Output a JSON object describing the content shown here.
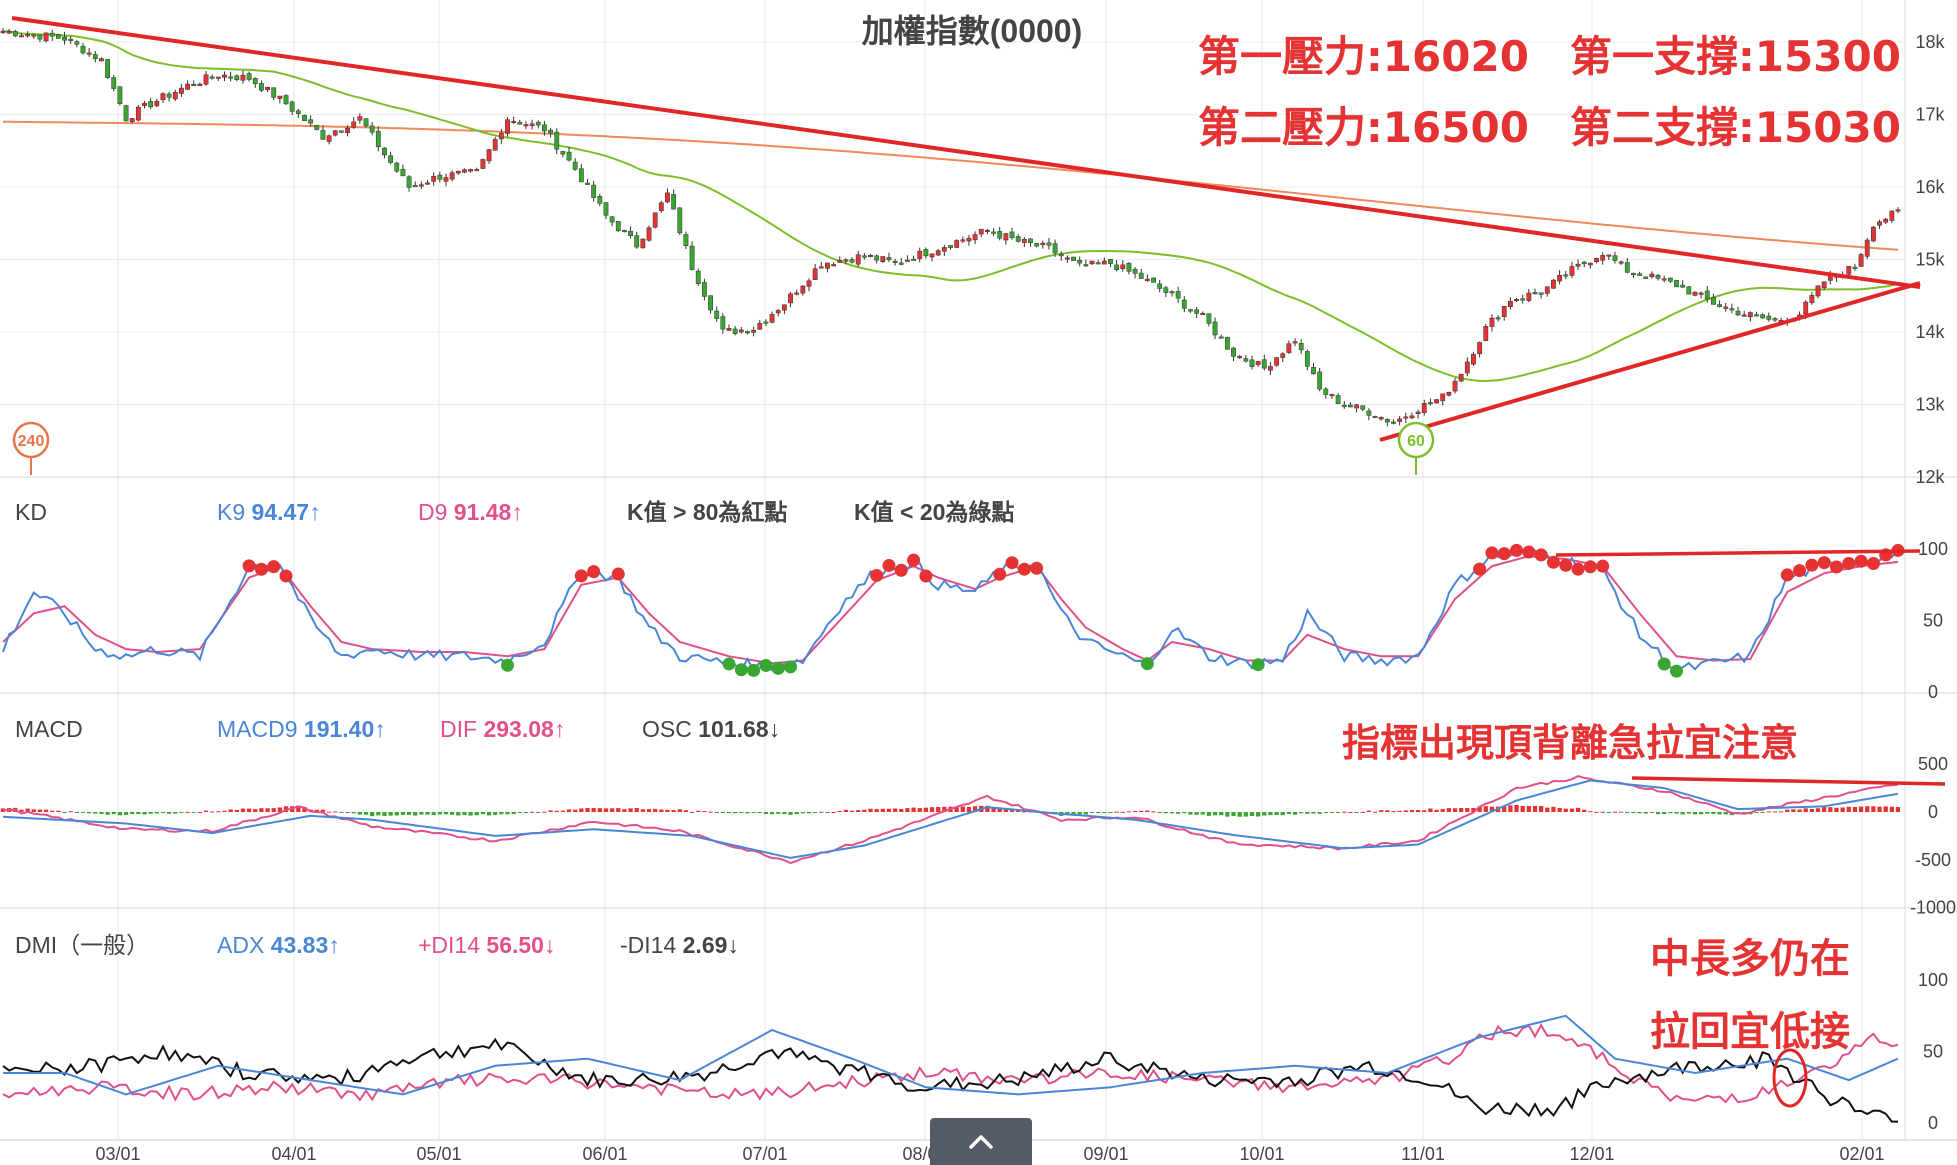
{
  "chart_data": {
    "type": "candlestick",
    "title": "加權指數(0000)",
    "annotations": {
      "resist1": "第一壓力:16020",
      "support1": "第一支撐:15300",
      "resist2": "第二壓力:16500",
      "support2": "第二支撐:15030",
      "macd_note": "指標出現頂背離急拉宜注意",
      "dmi_note1": "中長多仍在",
      "dmi_note2": "拉回宜低接"
    },
    "ma_badges": [
      "240",
      "60"
    ],
    "price_axis": {
      "ticks": [
        "18k",
        "17k",
        "16k",
        "15k",
        "14k",
        "13k",
        "12k"
      ],
      "range": [
        12000,
        18400
      ]
    },
    "x_axis_labels": [
      "03/01",
      "04/01",
      "05/01",
      "06/01",
      "07/01",
      "08/01",
      "09/01",
      "10/01",
      "11/01",
      "12/01",
      "02/01"
    ],
    "candle_keypoints": [
      [
        0,
        18150
      ],
      [
        10,
        18050
      ],
      [
        16,
        17750
      ],
      [
        20,
        16950
      ],
      [
        24,
        17150
      ],
      [
        30,
        17400
      ],
      [
        35,
        17550
      ],
      [
        40,
        17500
      ],
      [
        46,
        17150
      ],
      [
        52,
        16700
      ],
      [
        58,
        16950
      ],
      [
        62,
        16450
      ],
      [
        66,
        16000
      ],
      [
        71,
        16150
      ],
      [
        77,
        16200
      ],
      [
        82,
        16950
      ],
      [
        88,
        16800
      ],
      [
        93,
        16250
      ],
      [
        98,
        15600
      ],
      [
        103,
        15200
      ],
      [
        108,
        15900
      ],
      [
        112,
        14900
      ],
      [
        117,
        14000
      ],
      [
        122,
        14050
      ],
      [
        127,
        14400
      ],
      [
        133,
        14950
      ],
      [
        140,
        15050
      ],
      [
        145,
        14950
      ],
      [
        150,
        15100
      ],
      [
        155,
        15250
      ],
      [
        160,
        15400
      ],
      [
        165,
        15250
      ],
      [
        170,
        15150
      ],
      [
        175,
        14900
      ],
      [
        180,
        14950
      ],
      [
        185,
        14750
      ],
      [
        190,
        14500
      ],
      [
        195,
        14200
      ],
      [
        200,
        13700
      ],
      [
        205,
        13500
      ],
      [
        210,
        13900
      ],
      [
        214,
        13200
      ],
      [
        218,
        13000
      ],
      [
        222,
        12900
      ],
      [
        226,
        12750
      ],
      [
        230,
        12950
      ],
      [
        234,
        13100
      ],
      [
        237,
        13450
      ],
      [
        241,
        14050
      ],
      [
        245,
        14450
      ],
      [
        250,
        14550
      ],
      [
        255,
        14850
      ],
      [
        260,
        15100
      ],
      [
        264,
        14850
      ],
      [
        268,
        14750
      ],
      [
        272,
        14650
      ],
      [
        278,
        14400
      ],
      [
        283,
        14250
      ],
      [
        288,
        14150
      ],
      [
        292,
        14250
      ],
      [
        296,
        14700
      ],
      [
        301,
        14900
      ],
      [
        304,
        15500
      ],
      [
        308,
        15650
      ]
    ],
    "kd": {
      "k9_label": "K9",
      "k9": "94.47",
      "k9_arrow": "↑",
      "d9_label": "D9",
      "d9": "91.48",
      "d9_arrow": "↑",
      "rule1": "K值 > 80為紅點",
      "rule2": "K值 < 20為綠點",
      "axis": [
        "100",
        "50",
        "0"
      ],
      "k_keypoints": [
        [
          0,
          30
        ],
        [
          5,
          70
        ],
        [
          10,
          55
        ],
        [
          15,
          30
        ],
        [
          20,
          25
        ],
        [
          25,
          30
        ],
        [
          32,
          25
        ],
        [
          40,
          88
        ],
        [
          45,
          90
        ],
        [
          50,
          50
        ],
        [
          55,
          25
        ],
        [
          60,
          30
        ],
        [
          68,
          25
        ],
        [
          75,
          25
        ],
        [
          82,
          22
        ],
        [
          88,
          35
        ],
        [
          94,
          85
        ],
        [
          100,
          80
        ],
        [
          105,
          45
        ],
        [
          110,
          25
        ],
        [
          118,
          20
        ],
        [
          125,
          18
        ],
        [
          130,
          22
        ],
        [
          136,
          60
        ],
        [
          142,
          85
        ],
        [
          148,
          90
        ],
        [
          152,
          75
        ],
        [
          158,
          70
        ],
        [
          162,
          85
        ],
        [
          168,
          90
        ],
        [
          172,
          55
        ],
        [
          176,
          35
        ],
        [
          182,
          25
        ],
        [
          186,
          18
        ],
        [
          190,
          45
        ],
        [
          196,
          25
        ],
        [
          202,
          20
        ],
        [
          208,
          22
        ],
        [
          212,
          55
        ],
        [
          218,
          25
        ],
        [
          224,
          22
        ],
        [
          230,
          25
        ],
        [
          236,
          75
        ],
        [
          242,
          95
        ],
        [
          248,
          98
        ],
        [
          254,
          92
        ],
        [
          260,
          85
        ],
        [
          266,
          40
        ],
        [
          272,
          15
        ],
        [
          278,
          20
        ],
        [
          284,
          25
        ],
        [
          290,
          80
        ],
        [
          296,
          88
        ],
        [
          302,
          92
        ],
        [
          308,
          96
        ]
      ],
      "d_keypoints": [
        [
          0,
          35
        ],
        [
          5,
          55
        ],
        [
          10,
          60
        ],
        [
          15,
          40
        ],
        [
          20,
          30
        ],
        [
          25,
          28
        ],
        [
          32,
          30
        ],
        [
          40,
          80
        ],
        [
          45,
          88
        ],
        [
          50,
          60
        ],
        [
          55,
          35
        ],
        [
          60,
          30
        ],
        [
          68,
          28
        ],
        [
          75,
          28
        ],
        [
          82,
          25
        ],
        [
          88,
          30
        ],
        [
          94,
          75
        ],
        [
          100,
          80
        ],
        [
          105,
          55
        ],
        [
          110,
          35
        ],
        [
          118,
          25
        ],
        [
          125,
          20
        ],
        [
          130,
          22
        ],
        [
          136,
          50
        ],
        [
          142,
          78
        ],
        [
          148,
          88
        ],
        [
          152,
          80
        ],
        [
          158,
          72
        ],
        [
          162,
          80
        ],
        [
          168,
          88
        ],
        [
          172,
          65
        ],
        [
          176,
          45
        ],
        [
          182,
          30
        ],
        [
          186,
          22
        ],
        [
          190,
          35
        ],
        [
          196,
          30
        ],
        [
          202,
          22
        ],
        [
          208,
          22
        ],
        [
          212,
          40
        ],
        [
          218,
          30
        ],
        [
          224,
          25
        ],
        [
          230,
          25
        ],
        [
          236,
          65
        ],
        [
          242,
          88
        ],
        [
          248,
          95
        ],
        [
          254,
          93
        ],
        [
          260,
          88
        ],
        [
          266,
          55
        ],
        [
          272,
          25
        ],
        [
          278,
          22
        ],
        [
          284,
          23
        ],
        [
          290,
          70
        ],
        [
          296,
          83
        ],
        [
          302,
          88
        ],
        [
          308,
          91
        ]
      ]
    },
    "macd": {
      "macd9_label": "MACD9",
      "macd9": "191.40",
      "macd9_arrow": "↑",
      "dif_label": "DIF",
      "dif": "293.08",
      "dif_arrow": "↑",
      "osc_label": "OSC",
      "osc": "101.68",
      "osc_arrow": "↓",
      "axis": [
        "500",
        "0",
        "-500",
        "-1000"
      ],
      "macd_keypoints": [
        [
          0,
          -50
        ],
        [
          20,
          -120
        ],
        [
          34,
          -220
        ],
        [
          50,
          -40
        ],
        [
          60,
          -80
        ],
        [
          80,
          -250
        ],
        [
          96,
          -180
        ],
        [
          112,
          -250
        ],
        [
          128,
          -480
        ],
        [
          140,
          -350
        ],
        [
          160,
          50
        ],
        [
          172,
          -20
        ],
        [
          184,
          -80
        ],
        [
          200,
          -240
        ],
        [
          218,
          -380
        ],
        [
          230,
          -340
        ],
        [
          246,
          120
        ],
        [
          258,
          330
        ],
        [
          270,
          250
        ],
        [
          282,
          30
        ],
        [
          296,
          60
        ],
        [
          308,
          190
        ]
      ],
      "dif_keypoints": [
        [
          0,
          30
        ],
        [
          20,
          -180
        ],
        [
          34,
          -200
        ],
        [
          48,
          50
        ],
        [
          60,
          -150
        ],
        [
          80,
          -300
        ],
        [
          96,
          -100
        ],
        [
          110,
          -200
        ],
        [
          128,
          -520
        ],
        [
          140,
          -300
        ],
        [
          160,
          160
        ],
        [
          172,
          -80
        ],
        [
          184,
          -50
        ],
        [
          200,
          -330
        ],
        [
          218,
          -380
        ],
        [
          230,
          -300
        ],
        [
          246,
          250
        ],
        [
          256,
          360
        ],
        [
          270,
          220
        ],
        [
          282,
          -20
        ],
        [
          296,
          150
        ],
        [
          308,
          290
        ]
      ]
    },
    "dmi": {
      "label": "DMI（一般）",
      "adx_label": "ADX",
      "adx": "43.83",
      "adx_arrow": "↑",
      "pdi_label": "+DI14",
      "pdi": "56.50",
      "pdi_arrow": "↓",
      "mdi_label": "-DI14",
      "mdi": "2.69",
      "mdi_arrow": "↓",
      "axis": [
        "100",
        "50",
        "0"
      ],
      "adx_keypoints": [
        [
          0,
          35
        ],
        [
          10,
          35
        ],
        [
          20,
          20
        ],
        [
          35,
          40
        ],
        [
          50,
          30
        ],
        [
          65,
          20
        ],
        [
          80,
          40
        ],
        [
          95,
          45
        ],
        [
          110,
          30
        ],
        [
          125,
          65
        ],
        [
          138,
          45
        ],
        [
          150,
          25
        ],
        [
          165,
          20
        ],
        [
          180,
          25
        ],
        [
          195,
          35
        ],
        [
          210,
          40
        ],
        [
          225,
          35
        ],
        [
          240,
          60
        ],
        [
          254,
          75
        ],
        [
          262,
          45
        ],
        [
          275,
          35
        ],
        [
          290,
          45
        ],
        [
          300,
          30
        ],
        [
          308,
          45
        ]
      ],
      "pdi_keypoints": [
        [
          0,
          20
        ],
        [
          15,
          25
        ],
        [
          30,
          20
        ],
        [
          45,
          25
        ],
        [
          60,
          20
        ],
        [
          75,
          30
        ],
        [
          90,
          30
        ],
        [
          105,
          25
        ],
        [
          115,
          20
        ],
        [
          125,
          20
        ],
        [
          140,
          30
        ],
        [
          150,
          35
        ],
        [
          165,
          30
        ],
        [
          180,
          35
        ],
        [
          195,
          30
        ],
        [
          210,
          25
        ],
        [
          225,
          30
        ],
        [
          235,
          45
        ],
        [
          243,
          65
        ],
        [
          252,
          65
        ],
        [
          262,
          40
        ],
        [
          272,
          15
        ],
        [
          285,
          20
        ],
        [
          298,
          40
        ],
        [
          303,
          60
        ],
        [
          308,
          56
        ]
      ],
      "mdi_keypoints": [
        [
          0,
          35
        ],
        [
          15,
          40
        ],
        [
          25,
          50
        ],
        [
          40,
          35
        ],
        [
          55,
          30
        ],
        [
          65,
          45
        ],
        [
          80,
          55
        ],
        [
          95,
          30
        ],
        [
          105,
          30
        ],
        [
          115,
          35
        ],
        [
          125,
          50
        ],
        [
          140,
          35
        ],
        [
          150,
          25
        ],
        [
          165,
          30
        ],
        [
          180,
          45
        ],
        [
          195,
          30
        ],
        [
          210,
          30
        ],
        [
          222,
          40
        ],
        [
          232,
          30
        ],
        [
          240,
          10
        ],
        [
          252,
          10
        ],
        [
          262,
          30
        ],
        [
          275,
          40
        ],
        [
          287,
          45
        ],
        [
          296,
          20
        ],
        [
          303,
          5
        ],
        [
          308,
          3
        ]
      ]
    }
  }
}
